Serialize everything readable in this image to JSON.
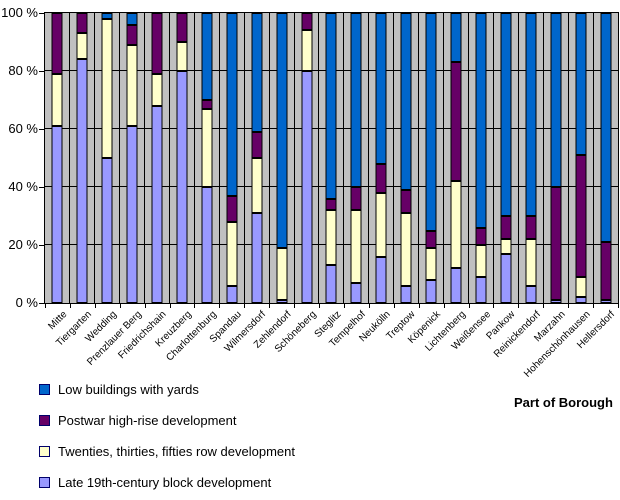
{
  "chart_data": {
    "type": "bar",
    "stacked": true,
    "units": "percent",
    "plot_bg": "#C0C0C0",
    "grid": "horizontal-and-vertical",
    "categories": [
      "Mitte",
      "Tiergarten",
      "Wedding",
      "Prenzlauer Berg",
      "Friedrichshain",
      "Kreuzberg",
      "Charlottenburg",
      "Spandau",
      "Wilmersdorf",
      "Zehlendorf",
      "Schöneberg",
      "Steglitz",
      "Tempelhof",
      "Neukölln",
      "Treptow",
      "Köpenick",
      "Lichtenberg",
      "Weißensee",
      "Pankow",
      "Reinickendorf",
      "Marzahn",
      "Hohenschönhausen",
      "Hellersdorf"
    ],
    "series": [
      {
        "name": "Late 19th-century block development",
        "color": "#9999FF",
        "values": [
          61,
          84,
          50,
          61,
          68,
          80,
          40,
          6,
          31,
          1,
          80,
          13,
          7,
          16,
          6,
          8,
          12,
          9,
          17,
          6,
          1,
          2,
          1
        ]
      },
      {
        "name": "Twenties, thirties, fifties row development",
        "color": "#FFFFCC",
        "values": [
          18,
          9,
          48,
          28,
          11,
          10,
          27,
          22,
          19,
          18,
          14,
          19,
          25,
          22,
          25,
          11,
          30,
          11,
          5,
          16,
          0,
          7,
          0
        ]
      },
      {
        "name": "Postwar high-rise development",
        "color": "#660066",
        "values": [
          21,
          7,
          0,
          7,
          21,
          10,
          3,
          9,
          9,
          0,
          6,
          4,
          8,
          10,
          8,
          6,
          41,
          6,
          8,
          8,
          39,
          42,
          20
        ]
      },
      {
        "name": "Low buildings with yards",
        "color": "#0066CC",
        "values": [
          0,
          0,
          2,
          4,
          0,
          0,
          30,
          63,
          41,
          81,
          0,
          64,
          60,
          52,
          61,
          75,
          17,
          74,
          70,
          70,
          60,
          49,
          79
        ]
      }
    ],
    "y_axis": {
      "min": 0,
      "max": 100,
      "step": 20,
      "ticks": [
        "100 %",
        "80 %",
        "60 %",
        "40 %",
        "20 %",
        "0 %"
      ]
    },
    "x_axis": {
      "label": "Part of Borough"
    },
    "legend": {
      "position": "bottom-left",
      "order_top_to_bottom": [
        "Low buildings with yards",
        "Postwar high-rise development",
        "Twenties, thirties, fifties row development",
        "Late 19th-century block development"
      ]
    }
  }
}
